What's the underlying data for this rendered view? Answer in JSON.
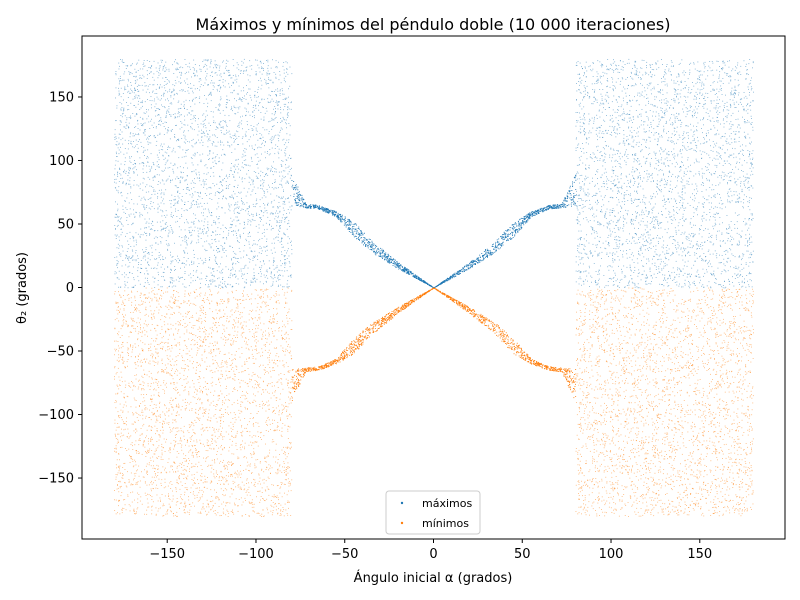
{
  "chart_data": {
    "type": "scatter",
    "title": "Máximos y mínimos del péndulo doble (10 000 iteraciones)",
    "xlabel": "Ángulo inicial α (grados)",
    "ylabel": "θ₂ (grados)",
    "xlim": [
      -198,
      198
    ],
    "ylim": [
      -198,
      198
    ],
    "xticks": [
      -150,
      -100,
      -50,
      0,
      50,
      100,
      150
    ],
    "yticks": [
      -150,
      -100,
      -50,
      0,
      50,
      100,
      150
    ],
    "xtick_labels": [
      "−150",
      "−100",
      "−50",
      "0",
      "50",
      "100",
      "150"
    ],
    "ytick_labels": [
      "−150",
      "−100",
      "−50",
      "0",
      "50",
      "100",
      "150"
    ],
    "grid": false,
    "legend_position": "lower-center",
    "series": [
      {
        "name": "máximos",
        "color": "#1f77b4",
        "chaotic_regions": [
          {
            "x_range": [
              -180,
              -80
            ],
            "y_range": [
              0,
              180
            ]
          },
          {
            "x_range": [
              80,
              180
            ],
            "y_range": [
              0,
              180
            ]
          }
        ],
        "envelope_upper": [
          [
            -80,
            90
          ],
          [
            -72,
            66
          ],
          [
            -65,
            65
          ],
          [
            -55,
            60
          ],
          [
            -45,
            52
          ],
          [
            -35,
            37
          ],
          [
            -20,
            20
          ],
          [
            0,
            0
          ],
          [
            20,
            20
          ],
          [
            35,
            37
          ],
          [
            45,
            52
          ],
          [
            55,
            60
          ],
          [
            65,
            65
          ],
          [
            72,
            66
          ],
          [
            80,
            90
          ]
        ],
        "envelope_lower": [
          [
            -80,
            64
          ],
          [
            -72,
            63
          ],
          [
            -65,
            62
          ],
          [
            -55,
            56
          ],
          [
            -45,
            40
          ],
          [
            -35,
            28
          ],
          [
            -20,
            15
          ],
          [
            0,
            0
          ],
          [
            20,
            15
          ],
          [
            35,
            28
          ],
          [
            45,
            40
          ],
          [
            55,
            56
          ],
          [
            65,
            62
          ],
          [
            72,
            63
          ],
          [
            80,
            64
          ]
        ]
      },
      {
        "name": "mínimos",
        "color": "#ff7f0e",
        "chaotic_regions": [
          {
            "x_range": [
              -180,
              -80
            ],
            "y_range": [
              -180,
              0
            ]
          },
          {
            "x_range": [
              80,
              180
            ],
            "y_range": [
              -180,
              0
            ]
          }
        ],
        "envelope_upper": [
          [
            -80,
            -64
          ],
          [
            -72,
            -63
          ],
          [
            -65,
            -62
          ],
          [
            -55,
            -56
          ],
          [
            -45,
            -40
          ],
          [
            -35,
            -28
          ],
          [
            -20,
            -15
          ],
          [
            0,
            0
          ],
          [
            20,
            -15
          ],
          [
            35,
            -28
          ],
          [
            45,
            -40
          ],
          [
            55,
            -56
          ],
          [
            65,
            -62
          ],
          [
            72,
            -63
          ],
          [
            80,
            -64
          ]
        ],
        "envelope_lower": [
          [
            -80,
            -90
          ],
          [
            -72,
            -66
          ],
          [
            -65,
            -65
          ],
          [
            -55,
            -60
          ],
          [
            -45,
            -52
          ],
          [
            -35,
            -37
          ],
          [
            -20,
            -20
          ],
          [
            0,
            0
          ],
          [
            20,
            -20
          ],
          [
            35,
            -37
          ],
          [
            45,
            -52
          ],
          [
            55,
            -60
          ],
          [
            65,
            -65
          ],
          [
            72,
            -66
          ],
          [
            80,
            -90
          ]
        ]
      }
    ]
  }
}
